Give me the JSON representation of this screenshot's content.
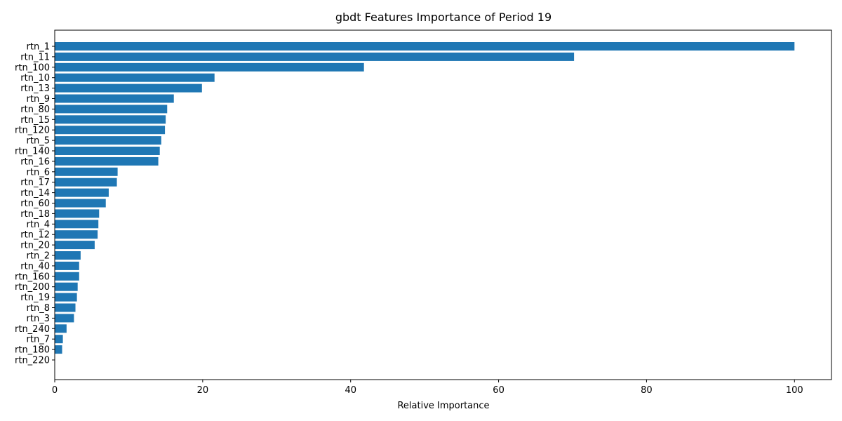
{
  "chart_data": {
    "type": "bar",
    "orientation": "horizontal",
    "title": "gbdt Features Importance of Period 19",
    "xlabel": "Relative Importance",
    "ylabel": "",
    "xlim": [
      0,
      105
    ],
    "xticks": [
      0,
      20,
      40,
      60,
      80,
      100
    ],
    "grid": false,
    "bar_color": "#1f77b4",
    "categories": [
      "rtn_1",
      "rtn_11",
      "rtn_100",
      "rtn_10",
      "rtn_13",
      "rtn_9",
      "rtn_80",
      "rtn_15",
      "rtn_120",
      "rtn_5",
      "rtn_140",
      "rtn_16",
      "rtn_6",
      "rtn_17",
      "rtn_14",
      "rtn_60",
      "rtn_18",
      "rtn_4",
      "rtn_12",
      "rtn_20",
      "rtn_2",
      "rtn_40",
      "rtn_160",
      "rtn_200",
      "rtn_19",
      "rtn_8",
      "rtn_3",
      "rtn_240",
      "rtn_7",
      "rtn_180",
      "rtn_220"
    ],
    "values": [
      100,
      70.2,
      41.8,
      21.6,
      19.9,
      16.1,
      15.2,
      15.0,
      14.9,
      14.4,
      14.2,
      14.0,
      8.5,
      8.4,
      7.3,
      6.9,
      6.0,
      5.9,
      5.8,
      5.4,
      3.5,
      3.3,
      3.3,
      3.1,
      3.0,
      2.8,
      2.6,
      1.6,
      1.1,
      1.0,
      0
    ]
  }
}
